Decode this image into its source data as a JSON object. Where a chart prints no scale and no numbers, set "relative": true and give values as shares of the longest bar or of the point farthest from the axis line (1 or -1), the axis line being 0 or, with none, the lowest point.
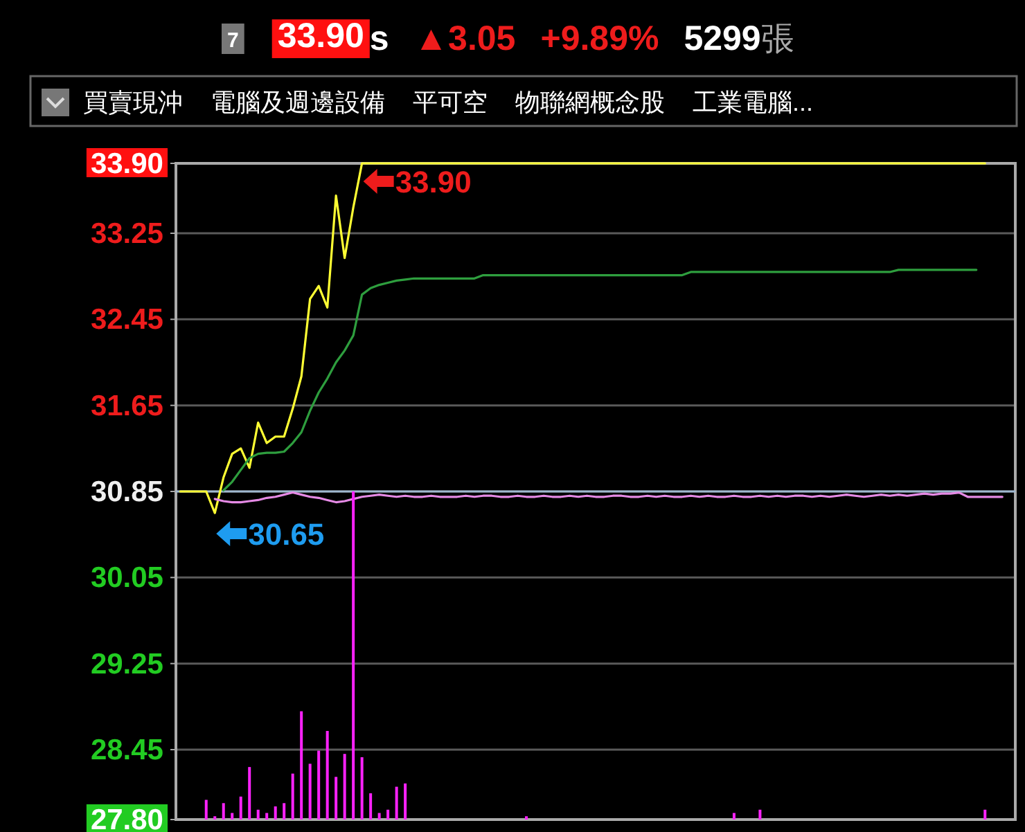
{
  "chart_data": [
    {
      "type": "line",
      "annotations": [
        "7",
        "33.90",
        "s",
        "▲3.05",
        "+9.89%",
        "5299",
        "張",
        "買賣現沖",
        "電腦及週邊設備",
        "平可空",
        "物聯網概念股",
        "工業電腦...",
        {
          "text": "33.90",
          "y": 33.9
        },
        "30.65"
      ],
      "categories": [
        null,
        null,
        null,
        null,
        null,
        null,
        null,
        null,
        null,
        null,
        null,
        null,
        null,
        null,
        null,
        null,
        null,
        null,
        null,
        null,
        null,
        null,
        null,
        null,
        null,
        null,
        null,
        null,
        null,
        null,
        null,
        null,
        null,
        null,
        null,
        null,
        null,
        null,
        null,
        null,
        null,
        null,
        null,
        null,
        null,
        null,
        null,
        null,
        null,
        null,
        null,
        null,
        null,
        null,
        null,
        null,
        null,
        null,
        null,
        null,
        null,
        null,
        null,
        null,
        null,
        null,
        null,
        null,
        null,
        null,
        null,
        null,
        null,
        null,
        null,
        null,
        null,
        null,
        null,
        null,
        null,
        null,
        null,
        null,
        null,
        null,
        null,
        null,
        null,
        null,
        null,
        null,
        null,
        null,
        null,
        null,
        null
      ],
      "series": [
        {
          "color": "#ffff33",
          "values": [
            30.85,
            30.85,
            30.85,
            30.85,
            30.65,
            30.98,
            31.2,
            31.25,
            31.07,
            31.49,
            31.3,
            31.36,
            31.36,
            31.62,
            31.92,
            32.64,
            32.76,
            32.56,
            33.6,
            33.02,
            33.49,
            33.9,
            33.9,
            33.9,
            33.9,
            33.9,
            33.9,
            33.9,
            33.9,
            33.9,
            33.9,
            33.9,
            33.9,
            33.9,
            33.9,
            33.9,
            33.9,
            33.9,
            33.9,
            33.9,
            33.9,
            33.9,
            33.9,
            33.9,
            33.9,
            33.9,
            33.9,
            33.9,
            33.9,
            33.9,
            33.9,
            33.9,
            33.9,
            33.9,
            33.9,
            33.9,
            33.9,
            33.9,
            33.9,
            33.9,
            33.9,
            33.9,
            33.9,
            33.9,
            33.9,
            33.9,
            33.9,
            33.9,
            33.9,
            33.9,
            33.9,
            33.9,
            33.9,
            33.9,
            33.9,
            33.9,
            33.9,
            33.9,
            33.9,
            33.9,
            33.9,
            33.9,
            33.9,
            33.9,
            33.9,
            33.9,
            33.9,
            33.9,
            33.9,
            33.9,
            33.9,
            33.9,
            33.9,
            33.9,
            null,
            null,
            null
          ]
        },
        {
          "color": "#2e9e3e",
          "values": [
            null,
            null,
            null,
            null,
            null,
            30.86,
            30.94,
            31.05,
            31.16,
            31.2,
            31.21,
            31.21,
            31.22,
            31.3,
            31.4,
            31.6,
            31.77,
            31.9,
            32.05,
            32.16,
            32.3,
            32.68,
            32.74,
            32.77,
            32.79,
            32.81,
            32.82,
            32.83,
            32.83,
            32.83,
            32.83,
            32.83,
            32.83,
            32.83,
            32.83,
            32.86,
            32.86,
            32.86,
            32.86,
            32.86,
            32.86,
            32.86,
            32.86,
            32.86,
            32.86,
            32.86,
            32.86,
            32.86,
            32.86,
            32.86,
            32.86,
            32.86,
            32.86,
            32.86,
            32.86,
            32.86,
            32.86,
            32.86,
            32.86,
            32.89,
            32.89,
            32.89,
            32.89,
            32.89,
            32.89,
            32.89,
            32.89,
            32.89,
            32.89,
            32.89,
            32.89,
            32.89,
            32.89,
            32.89,
            32.89,
            32.89,
            32.89,
            32.89,
            32.89,
            32.89,
            32.89,
            32.89,
            32.89,
            32.91,
            32.91,
            32.91,
            32.91,
            32.91,
            32.91,
            32.91,
            32.91,
            32.91,
            32.91,
            null,
            null,
            null,
            null
          ]
        },
        {
          "color": "#e58ae5",
          "values": [
            null,
            null,
            null,
            null,
            30.78,
            30.76,
            30.75,
            30.75,
            30.76,
            30.77,
            30.79,
            30.8,
            30.82,
            30.84,
            30.82,
            30.8,
            30.79,
            30.77,
            30.75,
            30.76,
            30.78,
            30.8,
            30.81,
            30.82,
            30.81,
            30.8,
            30.81,
            30.8,
            30.8,
            30.81,
            30.8,
            30.8,
            30.8,
            30.81,
            30.8,
            30.81,
            30.81,
            30.8,
            30.8,
            30.81,
            30.8,
            30.8,
            30.81,
            30.8,
            30.8,
            30.81,
            30.8,
            30.81,
            30.8,
            30.8,
            30.81,
            30.81,
            30.8,
            30.8,
            30.81,
            30.8,
            30.81,
            30.8,
            30.8,
            30.81,
            30.8,
            30.81,
            30.8,
            30.8,
            30.81,
            30.8,
            30.8,
            30.81,
            30.8,
            30.81,
            30.8,
            30.81,
            30.81,
            30.8,
            30.81,
            30.8,
            30.81,
            30.82,
            30.81,
            30.8,
            30.81,
            30.82,
            30.81,
            30.82,
            30.81,
            30.82,
            30.83,
            30.82,
            30.83,
            30.83,
            30.84,
            30.8,
            30.8,
            30.8,
            30.8,
            30.8,
            null
          ]
        }
      ],
      "ylim": [
        27.8,
        33.9
      ],
      "yticks": [
        {
          "value": 27.8,
          "label": "27.80"
        },
        {
          "value": 28.45,
          "label": "28.45"
        },
        {
          "value": 29.25,
          "label": "29.25"
        },
        {
          "value": 30.05,
          "label": "30.05"
        },
        {
          "value": 30.85,
          "label": "30.85"
        },
        {
          "value": 31.65,
          "label": "31.65"
        },
        {
          "value": 32.45,
          "label": "32.45"
        },
        {
          "value": 33.25,
          "label": "33.25"
        },
        {
          "value": 33.9,
          "label": "33.90"
        }
      ],
      "grid": "y",
      "tick_labels": "y",
      "ref_lines": [
        {
          "axis": "y",
          "value": 30.85,
          "color": "#9fb8d0"
        }
      ]
    },
    {
      "type": "bar",
      "relative": true,
      "color": "#ff22ff",
      "tick_labels": false,
      "categories": [
        null,
        null,
        null,
        null,
        null,
        null,
        null,
        null,
        null,
        null,
        null,
        null,
        null,
        null,
        null,
        null,
        null,
        null,
        null,
        null,
        null,
        null,
        null,
        null,
        null,
        null,
        null,
        null,
        null,
        null,
        null,
        null,
        null,
        null,
        null,
        null,
        null,
        null,
        null,
        null,
        null,
        null,
        null,
        null,
        null,
        null,
        null,
        null,
        null,
        null,
        null,
        null,
        null,
        null,
        null,
        null,
        null,
        null,
        null,
        null,
        null,
        null,
        null,
        null,
        null,
        null,
        null,
        null,
        null,
        null,
        null,
        null,
        null,
        null,
        null,
        null,
        null,
        null,
        null,
        null,
        null,
        null,
        null,
        null,
        null,
        null,
        null,
        null,
        null,
        null,
        null,
        null,
        null,
        null,
        null,
        null,
        null
      ],
      "values": [
        null,
        null,
        null,
        0.06,
        0.01,
        0.05,
        0.02,
        0.07,
        0.16,
        0.03,
        0.02,
        0.04,
        0.05,
        0.14,
        0.33,
        0.17,
        0.21,
        0.27,
        0.13,
        0.2,
        1,
        0.19,
        0.08,
        0.02,
        0.03,
        0.1,
        0.11,
        null,
        null,
        null,
        null,
        null,
        null,
        null,
        null,
        null,
        null,
        null,
        null,
        null,
        0.01,
        null,
        null,
        null,
        null,
        null,
        null,
        null,
        null,
        null,
        null,
        null,
        null,
        null,
        null,
        null,
        null,
        null,
        null,
        null,
        null,
        null,
        null,
        null,
        0.02,
        null,
        null,
        0.03,
        null,
        null,
        null,
        null,
        null,
        null,
        null,
        null,
        null,
        null,
        null,
        null,
        null,
        null,
        null,
        null,
        null,
        null,
        null,
        null,
        null,
        null,
        null,
        null,
        null,
        0.03,
        null,
        null,
        null
      ]
    }
  ]
}
